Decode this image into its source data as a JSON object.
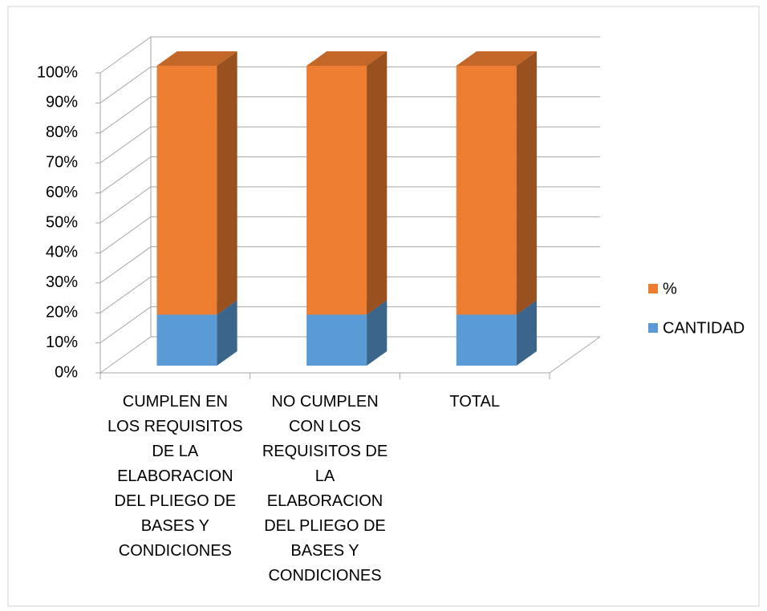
{
  "chart_data": {
    "type": "bar3d_stacked",
    "categories": [
      "CUMPLEN EN LOS REQUISITOS DE LA ELABORACION DEL PLIEGO DE BASES Y CONDICIONES",
      "NO CUMPLEN CON LOS REQUISITOS DE LA ELABORACION DEL PLIEGO DE BASES Y CONDICIONES",
      "TOTAL"
    ],
    "series": [
      {
        "name": "CANTIDAD",
        "color": "#5b9bd5",
        "values": [
          17,
          17,
          17
        ]
      },
      {
        "name": "%",
        "color": "#ed7d31",
        "values": [
          83,
          83,
          83
        ]
      }
    ],
    "ylim": [
      0,
      100
    ],
    "yticks": [
      {
        "value": 0,
        "label": "0%"
      },
      {
        "value": 10,
        "label": "10%"
      },
      {
        "value": 20,
        "label": "20%"
      },
      {
        "value": 30,
        "label": "30%"
      },
      {
        "value": 40,
        "label": "40%"
      },
      {
        "value": 50,
        "label": "50%"
      },
      {
        "value": 60,
        "label": "60%"
      },
      {
        "value": 70,
        "label": "70%"
      },
      {
        "value": 80,
        "label": "80%"
      },
      {
        "value": 90,
        "label": "90%"
      },
      {
        "value": 100,
        "label": "100%"
      }
    ],
    "grid": true,
    "legend": "right"
  }
}
